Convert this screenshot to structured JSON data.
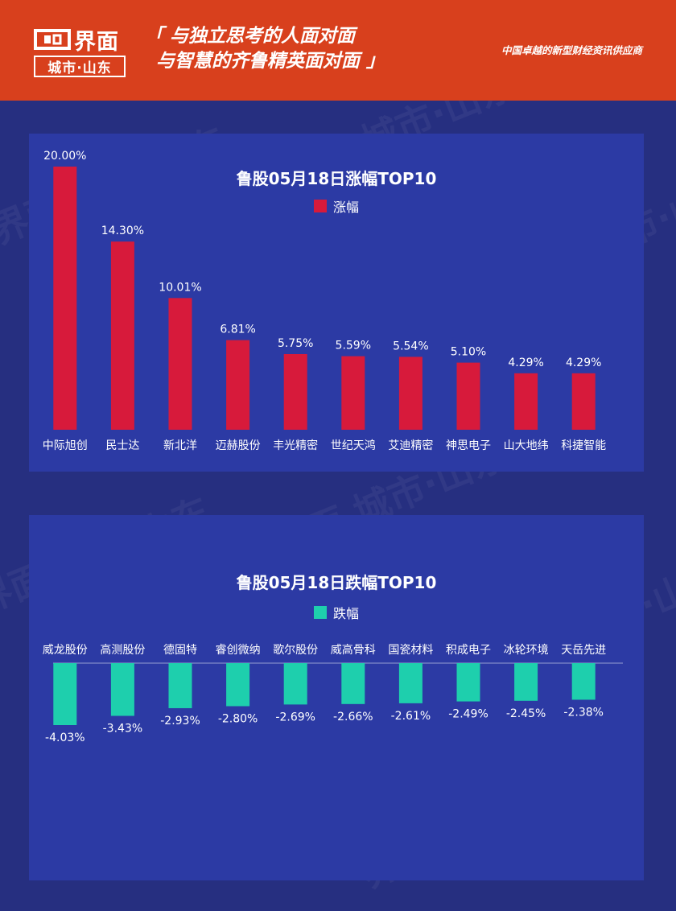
{
  "header": {
    "logo_name": "界面",
    "logo_sub": "城市·山东",
    "slogan_line1": "「 与独立思考的人面对面",
    "slogan_line2": "与智慧的齐鲁精英面对面 」",
    "tagline": "中国卓越的新型财经资讯供应商",
    "background_color": "#d8401d"
  },
  "watermark_text": "界面 城市·山东",
  "chart_data": [
    {
      "type": "bar",
      "title": "鲁股05月18日涨幅TOP10",
      "categories": [
        "中际旭创",
        "民士达",
        "新北洋",
        "迈赫股份",
        "丰光精密",
        "世纪天鸿",
        "艾迪精密",
        "神思电子",
        "山大地纬",
        "科捷智能"
      ],
      "series": [
        {
          "name": "涨幅",
          "values": [
            20.0,
            14.3,
            10.01,
            6.81,
            5.75,
            5.59,
            5.54,
            5.1,
            4.29,
            4.29
          ],
          "color": "#d71a3b"
        }
      ],
      "data_labels": [
        "20.00%",
        "14.30%",
        "10.01%",
        "6.81%",
        "5.75%",
        "5.59%",
        "5.54%",
        "5.10%",
        "4.29%",
        "4.29%"
      ],
      "ylim": [
        0,
        20
      ],
      "grid": false,
      "legend_position": "top-center"
    },
    {
      "type": "bar",
      "title": "鲁股05月18日跌幅TOP10",
      "categories": [
        "威龙股份",
        "高测股份",
        "德固特",
        "睿创微纳",
        "歌尔股份",
        "威高骨科",
        "国瓷材料",
        "积成电子",
        "冰轮环境",
        "天岳先进"
      ],
      "series": [
        {
          "name": "跌幅",
          "values": [
            -4.03,
            -3.43,
            -2.93,
            -2.8,
            -2.69,
            -2.66,
            -2.61,
            -2.49,
            -2.45,
            -2.38
          ],
          "color": "#1ecfad"
        }
      ],
      "data_labels": [
        "-4.03%",
        "-3.43%",
        "-2.93%",
        "-2.80%",
        "-2.69%",
        "-2.66%",
        "-2.61%",
        "-2.49%",
        "-2.45%",
        "-2.38%"
      ],
      "ylim": [
        -4.03,
        0
      ],
      "grid": false,
      "legend_position": "top-center"
    }
  ]
}
